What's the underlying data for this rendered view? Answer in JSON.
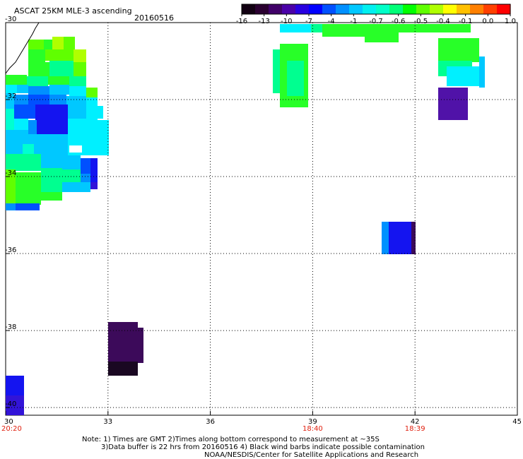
{
  "header": {
    "title": "ASCAT 25KM MLE-3 ascending",
    "date": "20160516"
  },
  "colorbar": {
    "colors": [
      "#120012",
      "#2a0030",
      "#400068",
      "#4a00a8",
      "#2800e0",
      "#0000ff",
      "#0050ff",
      "#0090ff",
      "#00c8ff",
      "#00f0f0",
      "#00ffc8",
      "#00ff78",
      "#00ff00",
      "#60ff00",
      "#b0ff00",
      "#ffff00",
      "#ffc000",
      "#ff8000",
      "#ff4000",
      "#ff0000"
    ],
    "tick_labels": [
      "-16",
      "-13",
      "-10",
      "-7",
      "-4",
      "-1",
      "-0.7",
      "-0.6",
      "-0.5",
      "-0.4",
      "-0.1",
      "0.0",
      "1.0"
    ]
  },
  "axes": {
    "x_labels": [
      "30",
      "33",
      "36",
      "39",
      "42",
      "45"
    ],
    "y_labels": [
      "-30",
      "-32",
      "-34",
      "-36",
      "-38",
      "-40"
    ],
    "time_labels": [
      {
        "lon": 30,
        "text": "20:20"
      },
      {
        "lon": 39,
        "text": "18:40"
      },
      {
        "lon": 42,
        "text": "18:39"
      }
    ],
    "lon_range": [
      30,
      45
    ],
    "lat_range": [
      -30,
      -40.2
    ],
    "grid": "dotted"
  },
  "footer": {
    "line1": "Note: 1) Times are GMT 2)Times along bottom correspond to measurement at ~35S",
    "line2": "3)Data buffer is 22 hrs from 20160516 4) Black wind barbs indicate possible contamination",
    "line3": "NOAA/NESDIS/Center for Satellite Applications and Research"
  }
}
